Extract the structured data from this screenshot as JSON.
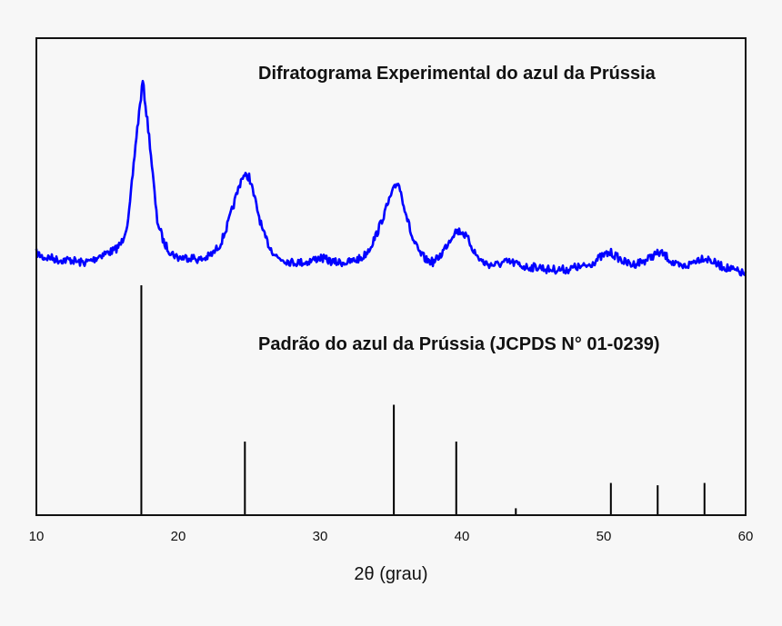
{
  "chart_data": {
    "type": "line",
    "title": "",
    "xlabel": "2θ (grau)",
    "ylabel": "",
    "xlim": [
      10,
      60
    ],
    "xticks": [
      "10",
      "20",
      "30",
      "40",
      "50",
      "60"
    ],
    "yticks": [],
    "grid": false,
    "annotations": {
      "experimental": "Difratograma Experimental do azul da Prússia",
      "reference": "Padrão do azul da Prússia (JCPDS N° 01-0239)"
    },
    "colors": {
      "experimental": "#0000ff",
      "reference": "#000000",
      "axes": "#111111",
      "background": "#f7f7f7"
    },
    "series": [
      {
        "type": "line",
        "x_step": 0.5,
        "x": [
          10,
          10.5,
          11,
          11.5,
          12,
          12.5,
          13,
          13.5,
          14,
          14.5,
          15,
          15.5,
          16,
          16.5,
          17,
          17.5,
          18,
          18.5,
          19,
          19.5,
          20,
          20.5,
          21,
          21.5,
          22,
          22.5,
          23,
          23.5,
          24,
          24.5,
          25,
          25.5,
          26,
          26.5,
          27,
          27.5,
          28,
          28.5,
          29,
          29.5,
          30,
          30.5,
          31,
          31.5,
          32,
          32.5,
          33,
          33.5,
          34,
          34.5,
          35,
          35.5,
          36,
          36.5,
          37,
          37.5,
          38,
          38.5,
          39,
          39.5,
          40,
          40.5,
          41,
          41.5,
          42,
          42.5,
          43,
          43.5,
          44,
          44.5,
          45,
          45.5,
          46,
          46.5,
          47,
          47.5,
          48,
          48.5,
          49,
          49.5,
          50,
          50.5,
          51,
          51.5,
          52,
          52.5,
          53,
          53.5,
          54,
          54.5,
          55,
          55.5,
          56,
          56.5,
          57,
          57.5,
          58,
          58.5,
          59,
          59.5,
          60
        ],
        "y": [
          55,
          54,
          54,
          53.5,
          53.5,
          53.5,
          53,
          53,
          53.5,
          54.5,
          55,
          55.5,
          57,
          62,
          78,
          91,
          78,
          62,
          57,
          55,
          54,
          54,
          54,
          53.5,
          54,
          55,
          57,
          61,
          66,
          71,
          71,
          65,
          59,
          56,
          54,
          53.5,
          53,
          53,
          53,
          53.5,
          54,
          53.5,
          53,
          53,
          53,
          53.5,
          54,
          56,
          59,
          63,
          67,
          70,
          64,
          58,
          55,
          53.5,
          53,
          54.5,
          57,
          59.5,
          59.5,
          57.5,
          54.5,
          53,
          52.5,
          52.5,
          53,
          53,
          52.5,
          52,
          52,
          52,
          51.5,
          51.5,
          51.5,
          51.5,
          52,
          52,
          52.5,
          53.5,
          54.5,
          55,
          54,
          53,
          52.5,
          53,
          53.5,
          54.5,
          55,
          54,
          52.5,
          52,
          52.5,
          53.5,
          54,
          53.5,
          52.5,
          52,
          51.5,
          51,
          50.5
        ]
      },
      {
        "type": "stick",
        "x": [
          17.4,
          24.7,
          35.2,
          39.6,
          43.8,
          50.5,
          53.8,
          57.1
        ],
        "relative_intensity": [
          100,
          32,
          48,
          32,
          3,
          14,
          13,
          14
        ]
      }
    ]
  }
}
